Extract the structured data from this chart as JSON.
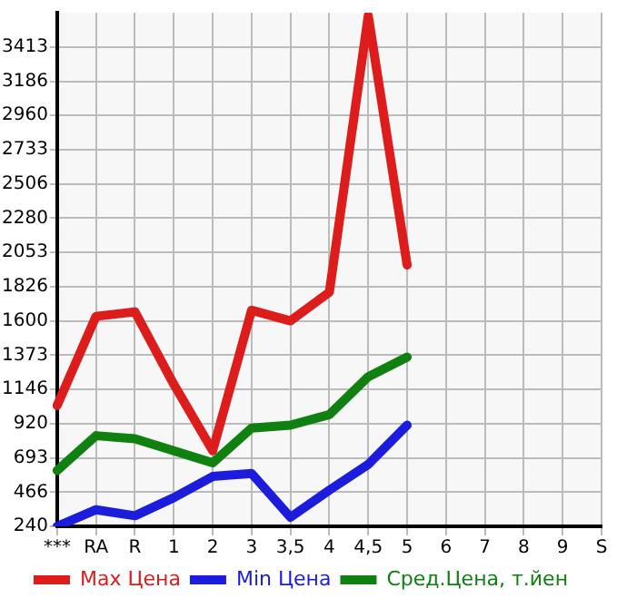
{
  "chart_data": {
    "type": "line",
    "categories": [
      "***",
      "RA",
      "R",
      "1",
      "2",
      "3",
      "3,5",
      "4",
      "4,5",
      "5",
      "6",
      "7",
      "8",
      "9",
      "S"
    ],
    "series": [
      {
        "name": "Max Цена",
        "color": "#dd1c1c",
        "values": [
          1040,
          1630,
          1660,
          1180,
          740,
          1670,
          1600,
          1790,
          3620,
          1970,
          null,
          null,
          null,
          null,
          null
        ]
      },
      {
        "name": "Min Цена",
        "color": "#1c1cdd",
        "values": [
          240,
          350,
          310,
          430,
          570,
          590,
          300,
          480,
          650,
          910,
          null,
          null,
          null,
          null,
          null
        ]
      },
      {
        "name": "Сред.Цена, т.йен",
        "color": "#108010",
        "values": [
          610,
          840,
          820,
          740,
          660,
          890,
          910,
          980,
          1230,
          1360,
          null,
          null,
          null,
          null,
          null
        ]
      }
    ],
    "ylim": [
      240,
      3640
    ],
    "yticks": [
      240,
      466,
      693,
      920,
      1146,
      1373,
      1600,
      1826,
      2053,
      2280,
      2506,
      2733,
      2960,
      3186,
      3413
    ],
    "grid": true,
    "legend": "bottom",
    "marker": "none",
    "line_style": "solid"
  }
}
